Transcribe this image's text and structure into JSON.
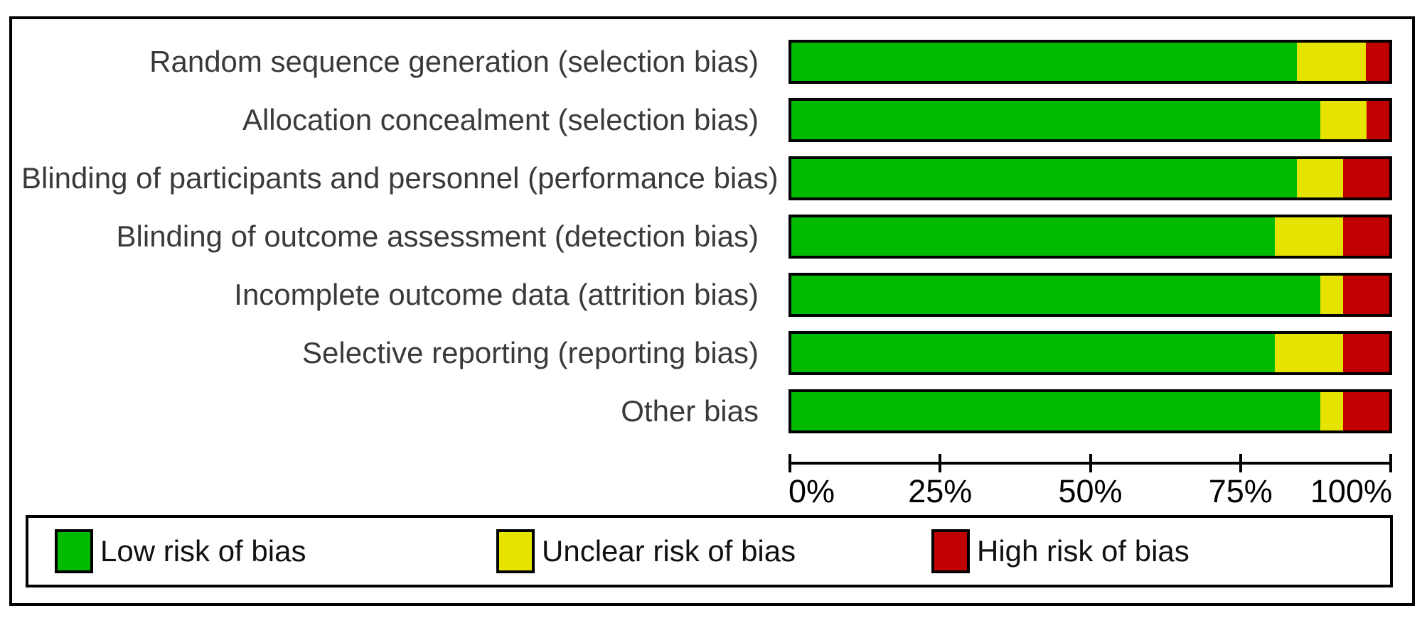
{
  "figure_title": "Risk of bias graph",
  "chart_data": {
    "type": "bar",
    "orientation": "horizontal",
    "stacked": true,
    "grid": false,
    "legend_position": "bottom",
    "xlim": [
      0,
      100
    ],
    "x_tick_values": [
      0,
      25,
      50,
      75,
      100
    ],
    "x_ticks": [
      "0%",
      "25%",
      "50%",
      "75%",
      "100%"
    ],
    "xlabel": "",
    "ylabel": "",
    "categories": [
      "Random sequence generation (selection bias)",
      "Allocation concealment (selection bias)",
      "Blinding of participants and personnel (performance bias)",
      "Blinding of outcome assessment (detection bias)",
      "Incomplete outcome data (attrition bias)",
      "Selective reporting (reporting bias)",
      "Other bias"
    ],
    "series": [
      {
        "name": "Low risk of bias",
        "color": "#00BA00",
        "values": [
          84.6,
          88.5,
          84.6,
          80.8,
          88.5,
          80.8,
          88.5
        ]
      },
      {
        "name": "Unclear risk of bias",
        "color": "#E6E300",
        "values": [
          11.5,
          7.7,
          7.7,
          11.5,
          3.8,
          11.5,
          3.8
        ]
      },
      {
        "name": "High risk of bias",
        "color": "#C00000",
        "values": [
          3.9,
          3.8,
          7.7,
          7.7,
          7.7,
          7.7,
          7.7
        ]
      }
    ]
  },
  "legend": {
    "items": [
      {
        "label": "Low risk of bias",
        "color": "#00BA00"
      },
      {
        "label": "Unclear risk of bias",
        "color": "#E6E300"
      },
      {
        "label": "High risk of bias",
        "color": "#C00000"
      }
    ]
  },
  "colors": {
    "low_risk": "#00BA00",
    "unclear_risk": "#E6E300",
    "high_risk": "#C00000",
    "border": "#000000",
    "label_text": "#3a3a3a",
    "background": "#ffffff"
  }
}
